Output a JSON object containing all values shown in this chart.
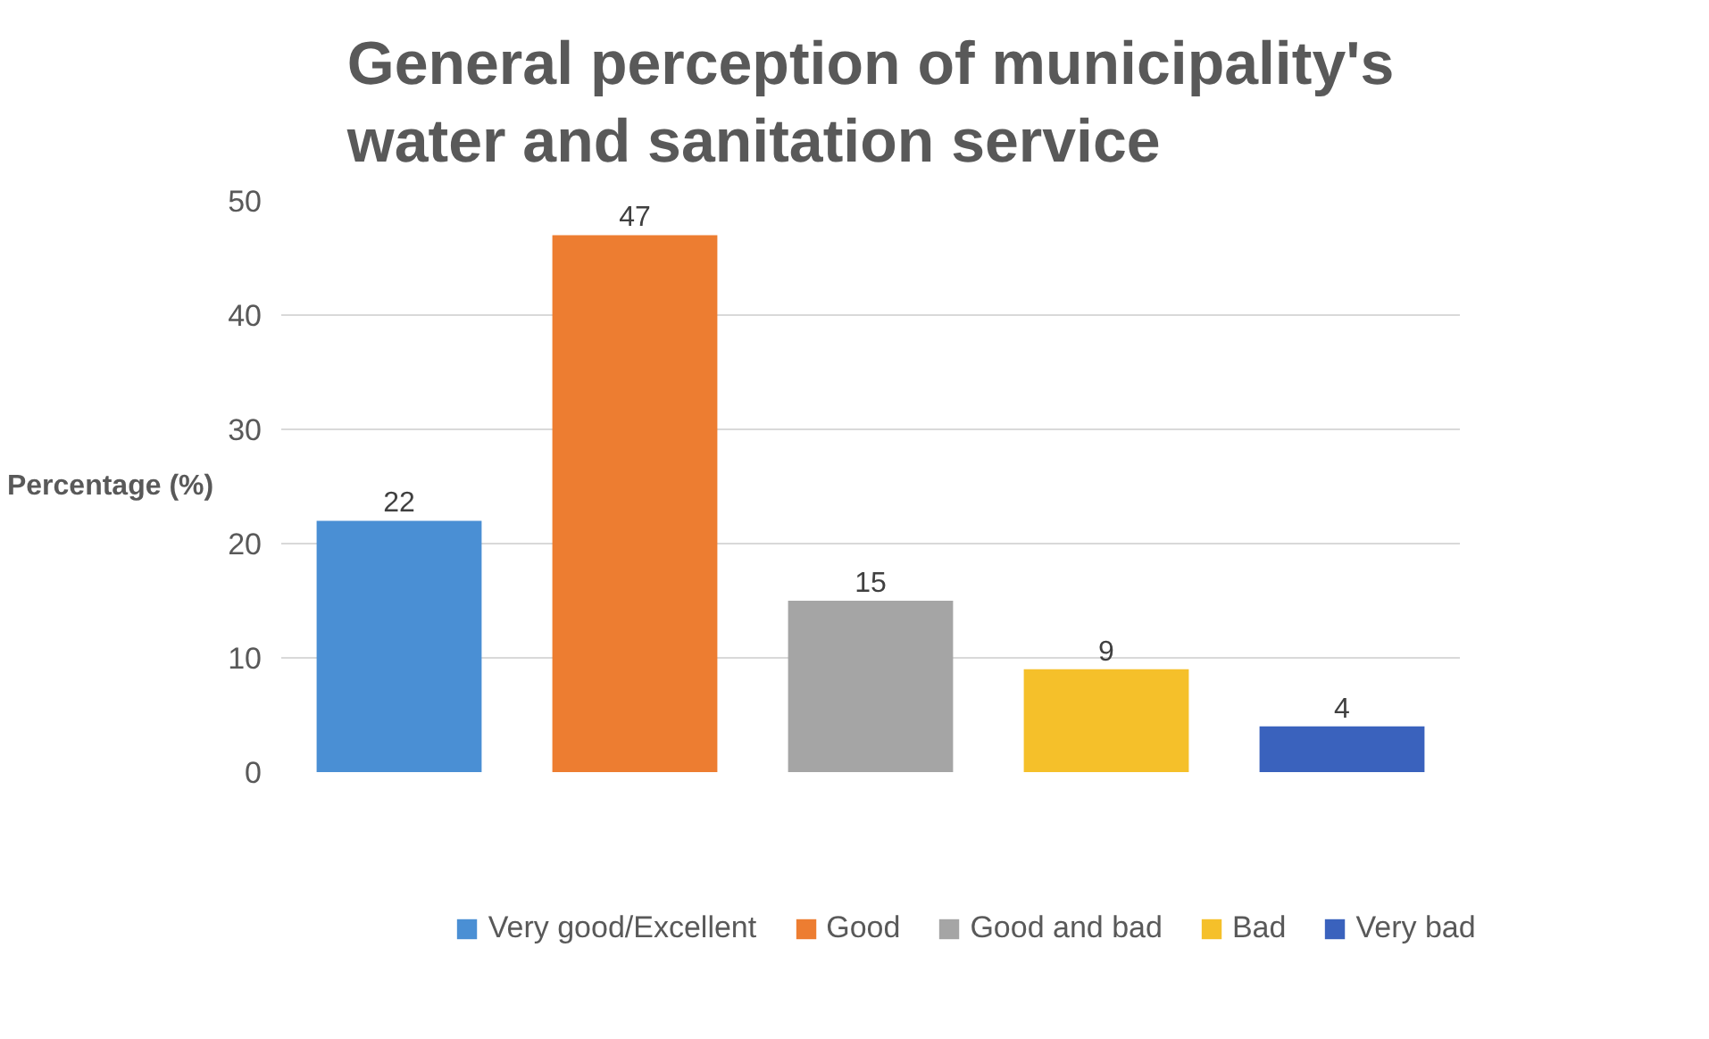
{
  "chart_data": {
    "type": "bar",
    "title": "General perception of municipality's water and sanitation service",
    "ylabel": "Percentage (%)",
    "categories": [
      null,
      null,
      null,
      null,
      null
    ],
    "series": [
      {
        "name": "Very good/Excellent",
        "color": "#4a8fd4",
        "values": [
          22,
          null,
          null,
          null,
          null
        ]
      },
      {
        "name": "Good",
        "color": "#ed7d31",
        "values": [
          null,
          47,
          null,
          null,
          null
        ]
      },
      {
        "name": "Good and bad",
        "color": "#a5a5a5",
        "values": [
          null,
          null,
          15,
          null,
          null
        ]
      },
      {
        "name": "Bad",
        "color": "#f5c02a",
        "values": [
          null,
          null,
          null,
          9,
          null
        ]
      },
      {
        "name": "Very bad",
        "color": "#3a62bd",
        "values": [
          null,
          null,
          null,
          null,
          4
        ]
      }
    ],
    "ylim": [
      0,
      50
    ],
    "yticks": [
      0,
      10,
      20,
      30,
      40,
      50
    ],
    "grid": "y",
    "legend": "bottom",
    "data_labels": true,
    "tick_labels": "y"
  }
}
